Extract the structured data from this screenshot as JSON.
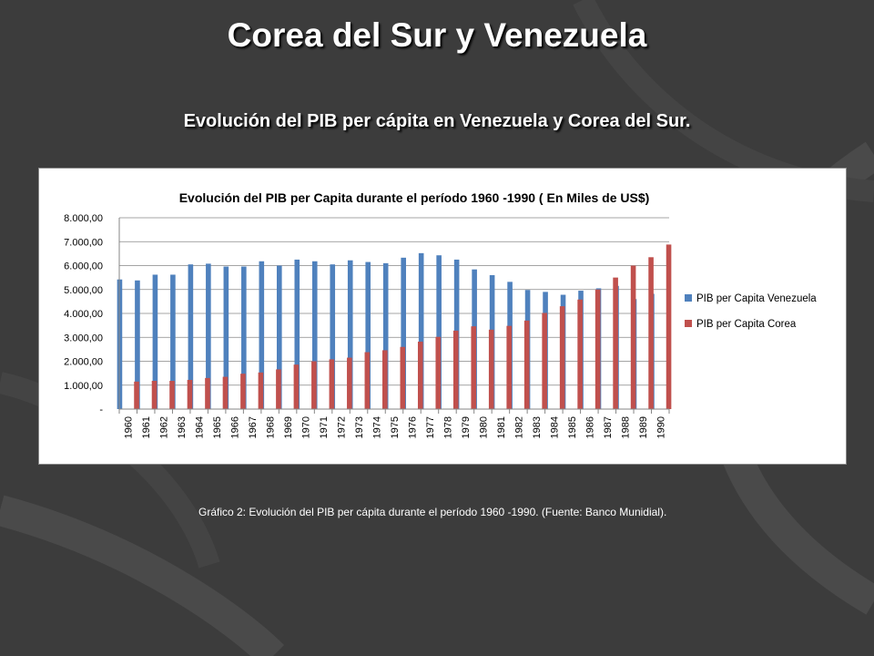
{
  "slide": {
    "title": "Corea del Sur y Venezuela",
    "subtitle": "Evolución del PIB per cápita en Venezuela y Corea del Sur.",
    "caption": "Gráfico 2: Evolución del PIB per cápita durante el período 1960 -1990. (Fuente: Banco Munidial)."
  },
  "colors": {
    "background": "#3c3c3c",
    "venezuela": "#4f81bd",
    "corea": "#c0504d"
  },
  "chart_data": {
    "type": "bar",
    "title": "Evolución del PIB per Capita durante el período 1960 -1990 ( En Miles de US$)",
    "xlabel": "",
    "ylabel": "",
    "ylim": [
      0,
      8000
    ],
    "yticks": [
      "-",
      "1.000,00",
      "2.000,00",
      "3.000,00",
      "4.000,00",
      "5.000,00",
      "6.000,00",
      "7.000,00",
      "8.000,00"
    ],
    "grid": true,
    "legend_position": "right",
    "categories": [
      "1960",
      "1961",
      "1962",
      "1963",
      "1964",
      "1965",
      "1966",
      "1967",
      "1968",
      "1969",
      "1970",
      "1971",
      "1972",
      "1973",
      "1974",
      "1975",
      "1976",
      "1977",
      "1978",
      "1979",
      "1980",
      "1981",
      "1982",
      "1983",
      "1984",
      "1985",
      "1986",
      "1987",
      "1988",
      "1989",
      "1990"
    ],
    "series": [
      {
        "name": "PIB per Capita Venezuela",
        "color": "#4f81bd",
        "values": [
          5420,
          5380,
          5620,
          5620,
          6050,
          6080,
          5960,
          5960,
          6180,
          6000,
          6250,
          6180,
          6050,
          6220,
          6150,
          6100,
          6330,
          6520,
          6430,
          6250,
          5840,
          5600,
          5320,
          4980,
          4900,
          4780,
          4950,
          5050,
          5150,
          4600,
          4820
        ]
      },
      {
        "name": "PIB per Capita Corea",
        "color": "#c0504d",
        "values": [
          1150,
          1180,
          1180,
          1220,
          1300,
          1350,
          1480,
          1530,
          1660,
          1860,
          2000,
          2080,
          2150,
          2380,
          2460,
          2600,
          2820,
          3020,
          3280,
          3460,
          3320,
          3480,
          3700,
          4020,
          4300,
          4580,
          5000,
          5500,
          6000,
          6350,
          6880
        ]
      }
    ]
  }
}
